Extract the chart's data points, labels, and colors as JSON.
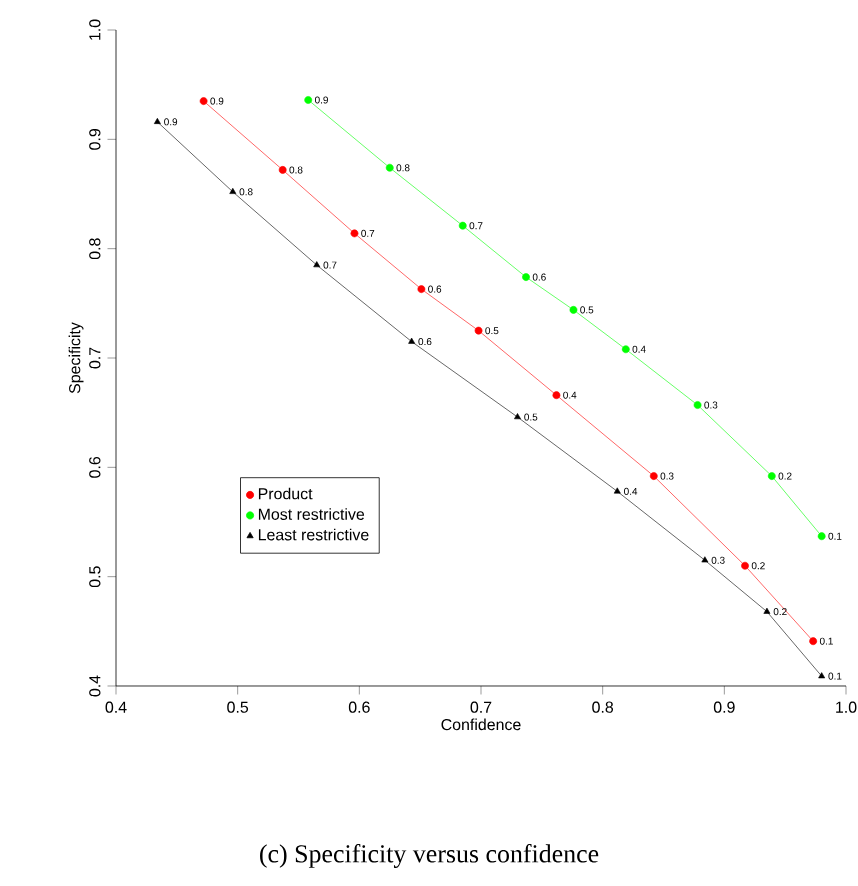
{
  "chart_data": {
    "type": "line",
    "xlabel": "Confidence",
    "ylabel": "Specificity",
    "xlim": [
      0.4,
      1.0
    ],
    "ylim": [
      0.4,
      1.0
    ],
    "xticks": [
      0.4,
      0.5,
      0.6,
      0.7,
      0.8,
      0.9,
      {
        "value": 1.0,
        "label": "1.0"
      }
    ],
    "yticks": [
      0.4,
      0.5,
      0.6,
      0.7,
      0.8,
      0.9,
      {
        "value": 1.0,
        "label": "1.0"
      }
    ],
    "grid": false,
    "legend": "left",
    "series": [
      {
        "name": "Product",
        "color": "#ff0000",
        "marker": "circle",
        "x": [
          0.472,
          0.537,
          0.596,
          0.651,
          0.698,
          0.762,
          0.842,
          0.917,
          0.973
        ],
        "values": [
          0.935,
          0.872,
          0.814,
          0.763,
          0.725,
          0.666,
          0.592,
          0.51,
          0.441
        ]
      },
      {
        "name": "Most restrictive",
        "color": "#00ff00",
        "marker": "circle",
        "x": [
          0.558,
          0.625,
          0.685,
          0.737,
          0.776,
          0.819,
          0.878,
          0.939,
          0.98
        ],
        "values": [
          0.936,
          0.874,
          0.821,
          0.774,
          0.744,
          0.708,
          0.657,
          0.592,
          0.537
        ]
      },
      {
        "name": "Least restrictive",
        "color": "#000000",
        "marker": "triangle",
        "x": [
          0.434,
          0.496,
          0.565,
          0.643,
          0.73,
          0.812,
          0.884,
          0.935,
          0.98
        ],
        "values": [
          0.916,
          0.852,
          0.785,
          0.715,
          0.646,
          0.578,
          0.515,
          0.468,
          0.409
        ]
      }
    ],
    "annotations": [
      {
        "text": "0.9",
        "x": 0.472,
        "y": 0.935
      },
      {
        "text": "0.8",
        "x": 0.537,
        "y": 0.872
      },
      {
        "text": "0.7",
        "x": 0.596,
        "y": 0.814
      },
      {
        "text": "0.6",
        "x": 0.651,
        "y": 0.763
      },
      {
        "text": "0.5",
        "x": 0.698,
        "y": 0.725
      },
      {
        "text": "0.4",
        "x": 0.762,
        "y": 0.666
      },
      {
        "text": "0.3",
        "x": 0.842,
        "y": 0.592
      },
      {
        "text": "0.2",
        "x": 0.917,
        "y": 0.51
      },
      {
        "text": "0.1",
        "x": 0.973,
        "y": 0.441
      },
      {
        "text": "0.9",
        "x": 0.558,
        "y": 0.936
      },
      {
        "text": "0.8",
        "x": 0.625,
        "y": 0.874
      },
      {
        "text": "0.7",
        "x": 0.685,
        "y": 0.821
      },
      {
        "text": "0.6",
        "x": 0.737,
        "y": 0.774
      },
      {
        "text": "0.5",
        "x": 0.776,
        "y": 0.744
      },
      {
        "text": "0.4",
        "x": 0.819,
        "y": 0.708
      },
      {
        "text": "0.3",
        "x": 0.878,
        "y": 0.657
      },
      {
        "text": "0.2",
        "x": 0.939,
        "y": 0.592
      },
      {
        "text": "0.1",
        "x": 0.98,
        "y": 0.537
      },
      {
        "text": "0.9",
        "x": 0.434,
        "y": 0.916
      },
      {
        "text": "0.8",
        "x": 0.496,
        "y": 0.852
      },
      {
        "text": "0.7",
        "x": 0.565,
        "y": 0.785
      },
      {
        "text": "0.6",
        "x": 0.643,
        "y": 0.715
      },
      {
        "text": "0.5",
        "x": 0.73,
        "y": 0.646
      },
      {
        "text": "0.4",
        "x": 0.812,
        "y": 0.578
      },
      {
        "text": "0.3",
        "x": 0.884,
        "y": 0.515
      },
      {
        "text": "0.2",
        "x": 0.935,
        "y": 0.468
      },
      {
        "text": "0.1",
        "x": 0.98,
        "y": 0.409
      },
      "(c) Specificity versus confidence"
    ]
  }
}
